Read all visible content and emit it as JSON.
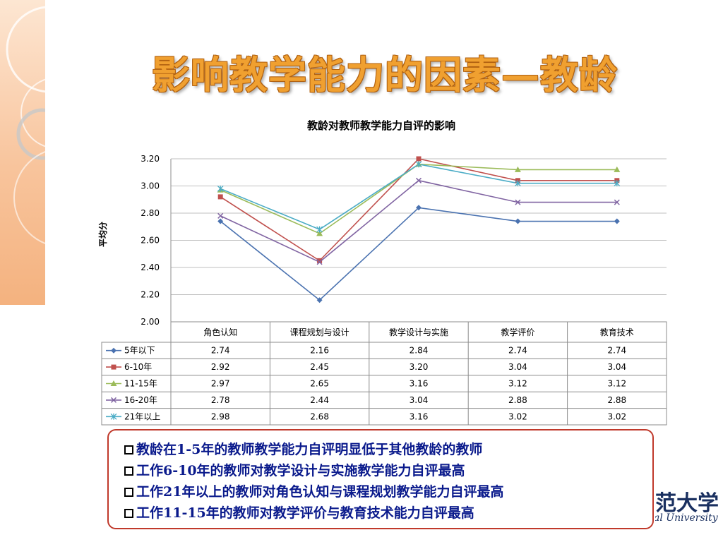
{
  "slide": {
    "title": "影响教学能力的因素—教龄"
  },
  "colors": {
    "series": [
      "#4a72b0",
      "#c0504d",
      "#9bbb59",
      "#8064a2",
      "#4bacc6"
    ],
    "note_text": "#0a1a8c",
    "note_border": "#c0392b",
    "title": "#f0a030"
  },
  "chart_data": {
    "type": "line",
    "title": "教龄对教师教学能力自评的影响",
    "ylabel": "平均分",
    "xlabel": "",
    "ylim": [
      2.0,
      3.2
    ],
    "yticks": [
      "3.20",
      "3.00",
      "2.80",
      "2.60",
      "2.40",
      "2.20",
      "2.00"
    ],
    "categories": [
      "角色认知",
      "课程规划与设计",
      "教学设计与实施",
      "教学评价",
      "教育技术"
    ],
    "grid": true,
    "legend": "data-table",
    "series": [
      {
        "name": "5年以下",
        "marker": "diamond",
        "values": [
          2.74,
          2.16,
          2.84,
          2.74,
          2.74
        ],
        "labels": [
          "2.74",
          "2.16",
          "2.84",
          "2.74",
          "2.74"
        ]
      },
      {
        "name": "6-10年",
        "marker": "square",
        "values": [
          2.92,
          2.45,
          3.2,
          3.04,
          3.04
        ],
        "labels": [
          "2.92",
          "2.45",
          "3.20",
          "3.04",
          "3.04"
        ]
      },
      {
        "name": "11-15年",
        "marker": "triangle",
        "values": [
          2.97,
          2.65,
          3.16,
          3.12,
          3.12
        ],
        "labels": [
          "2.97",
          "2.65",
          "3.16",
          "3.12",
          "3.12"
        ]
      },
      {
        "name": "16-20年",
        "marker": "x",
        "values": [
          2.78,
          2.44,
          3.04,
          2.88,
          2.88
        ],
        "labels": [
          "2.78",
          "2.44",
          "3.04",
          "2.88",
          "2.88"
        ]
      },
      {
        "name": "21年以上",
        "marker": "star",
        "values": [
          2.98,
          2.68,
          3.16,
          3.02,
          3.02
        ],
        "labels": [
          "2.98",
          "2.68",
          "3.16",
          "3.02",
          "3.02"
        ]
      }
    ]
  },
  "notes": [
    "教龄在1-5年的教师教学能力自评明显低于其他教龄的教师",
    "工作6-10年的教师对教学设计与实施教学能力自评最高",
    "工作21年以上的教师对角色认知与课程规划教学能力自评最高",
    "工作11-15年的教师对教学评价与教育技术能力自评最高"
  ],
  "logo": {
    "text_cn": "范大学",
    "text_en": "al University"
  }
}
